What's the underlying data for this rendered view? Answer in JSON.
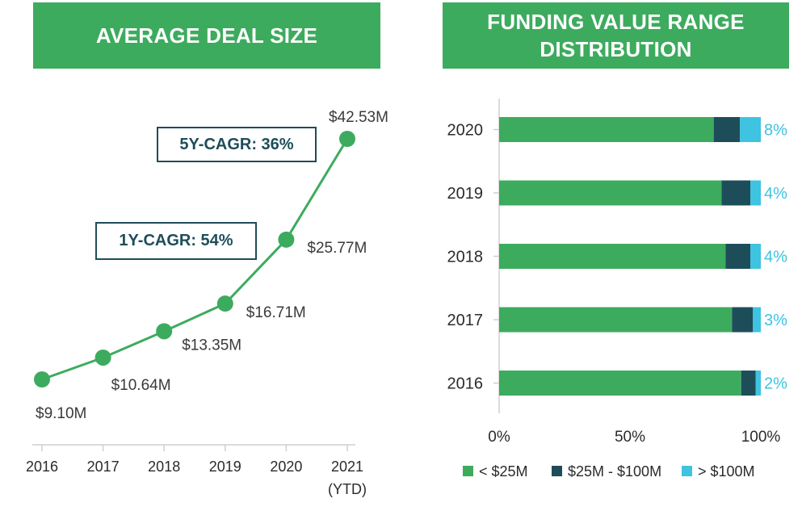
{
  "left_panel": {
    "banner_title": "AVERAGE DEAL SIZE",
    "cagr_5y": "5Y-CAGR: 36%",
    "cagr_1y": "1Y-CAGR: 54%"
  },
  "right_panel": {
    "banner_title": "FUNDING VALUE RANGE\nDISTRIBUTION"
  },
  "colors": {
    "green": "#3dab5e",
    "dark_teal": "#1e4d5a",
    "light_blue": "#3ec3e0",
    "axis": "#cfcfcf"
  },
  "chart_data": [
    {
      "type": "line",
      "title": "AVERAGE DEAL SIZE",
      "x": [
        "2016",
        "2017",
        "2018",
        "2019",
        "2020",
        "2021"
      ],
      "x_sublabels": [
        "",
        "",
        "",
        "",
        "",
        "(YTD)"
      ],
      "values": [
        9.1,
        10.64,
        13.35,
        16.71,
        25.77,
        42.53
      ],
      "data_labels": [
        "$9.10M",
        "$10.64M",
        "$13.35M",
        "$16.71M",
        "$25.77M",
        "$42.53M"
      ],
      "annotations": [
        "5Y-CAGR: 36%",
        "1Y-CAGR: 54%"
      ],
      "ylim": [
        0,
        50
      ],
      "grid": false
    },
    {
      "type": "bar",
      "orientation": "horizontal",
      "stacked": true,
      "title": "FUNDING VALUE RANGE DISTRIBUTION",
      "categories": [
        "2020",
        "2019",
        "2018",
        "2017",
        "2016"
      ],
      "series": [
        {
          "name": "< $25M",
          "color": "#3dab5e",
          "values": [
            82,
            85,
            86.5,
            89,
            92.5
          ]
        },
        {
          "name": "$25M - $100M",
          "color": "#1e4d5a",
          "values": [
            10,
            11,
            9.5,
            8,
            5.5
          ]
        },
        {
          "name": "> $100M",
          "color": "#3ec3e0",
          "values": [
            8,
            4,
            4,
            3,
            2
          ]
        }
      ],
      "end_labels": [
        "8%",
        "4%",
        "4%",
        "3%",
        "2%"
      ],
      "xticks": [
        "0%",
        "50%",
        "100%"
      ],
      "xlim": [
        0,
        100
      ],
      "legend_position": "bottom",
      "grid": false
    }
  ]
}
